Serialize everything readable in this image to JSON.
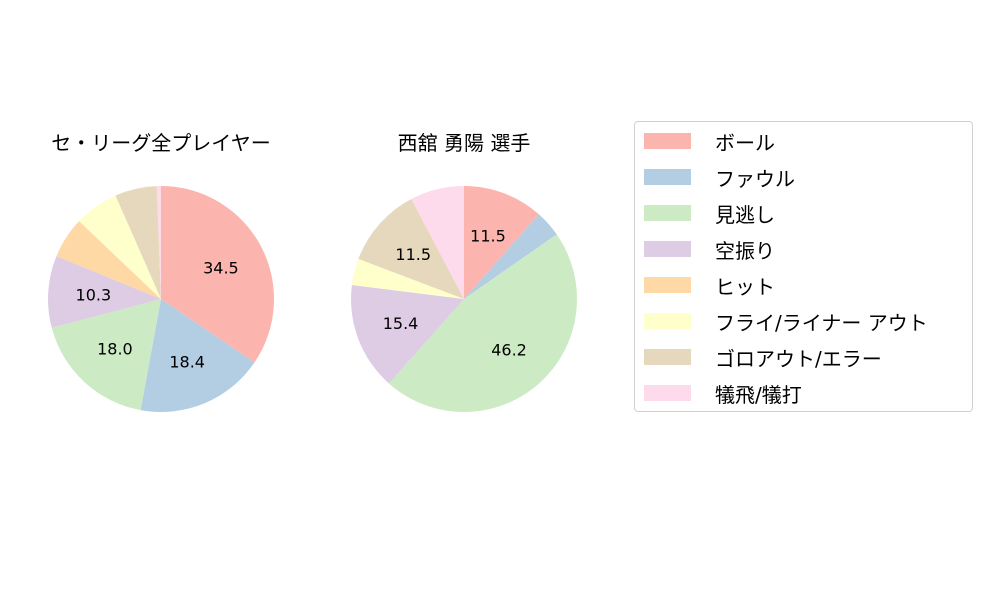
{
  "chart_data": [
    {
      "type": "pie",
      "title": "セ・リーグ全プレイヤー",
      "categories": [
        "ボール",
        "ファウル",
        "見逃し",
        "空振り",
        "ヒット",
        "フライ/ライナー アウト",
        "ゴロアウト/エラー",
        "犠飛/犠打"
      ],
      "values": [
        34.5,
        18.4,
        18.0,
        10.3,
        5.9,
        6.3,
        6.0,
        0.6
      ],
      "labels_shown": [
        "34.5",
        "18.4",
        "18.0",
        "10.3",
        "",
        "",
        "",
        ""
      ],
      "start_angle": 90,
      "direction": "clockwise"
    },
    {
      "type": "pie",
      "title": "西舘 勇陽  選手",
      "categories": [
        "ボール",
        "ファウル",
        "見逃し",
        "空振り",
        "ヒット",
        "フライ/ライナー アウト",
        "ゴロアウト/エラー",
        "犠飛/犠打"
      ],
      "values": [
        11.5,
        3.8,
        46.2,
        15.4,
        0.0,
        3.8,
        11.5,
        7.7
      ],
      "labels_shown": [
        "11.5",
        "",
        "46.2",
        "15.4",
        "",
        "",
        "11.5",
        ""
      ],
      "start_angle": 90,
      "direction": "clockwise"
    }
  ],
  "legend": {
    "position": "right",
    "items": [
      {
        "label": "ボール",
        "color": "#fbb4ae"
      },
      {
        "label": "ファウル",
        "color": "#b3cde3"
      },
      {
        "label": "見逃し",
        "color": "#ccebc5"
      },
      {
        "label": "空振り",
        "color": "#decbe4"
      },
      {
        "label": "ヒット",
        "color": "#fed9a6"
      },
      {
        "label": "フライ/ライナー アウト",
        "color": "#ffffcc"
      },
      {
        "label": "ゴロアウト/エラー",
        "color": "#e5d8bd"
      },
      {
        "label": "犠飛/犠打",
        "color": "#fddaec"
      }
    ]
  },
  "titles": {
    "left": "セ・リーグ全プレイヤー",
    "right": "西舘 勇陽  選手"
  }
}
